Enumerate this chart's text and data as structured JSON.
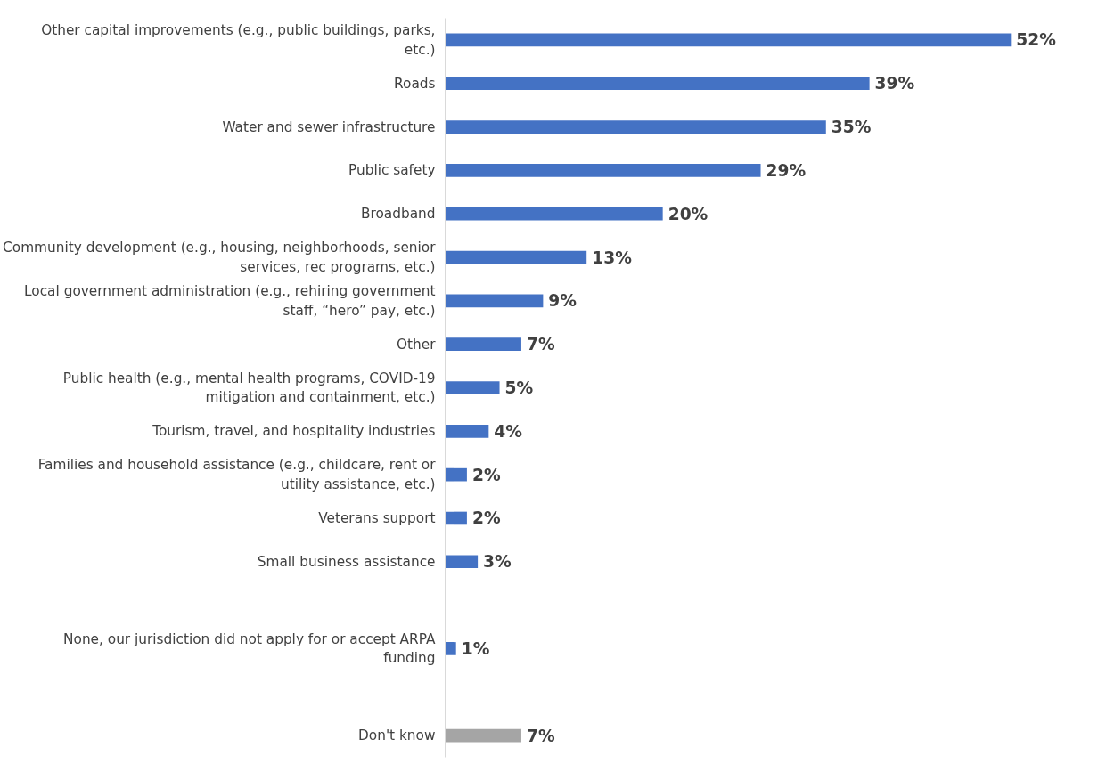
{
  "chart_data": {
    "type": "bar",
    "orientation": "horizontal",
    "categories": [
      "Other capital improvements (e.g., public buildings, parks, etc.)",
      "Roads",
      "Water and sewer infrastructure",
      "Public safety",
      "Broadband",
      "Community development (e.g., housing, neighborhoods, senior services, rec programs, etc.)",
      "Local government administration (e.g., rehiring government staff, “hero” pay, etc.)",
      "Other",
      "Public health (e.g., mental health programs, COVID-19 mitigation and containment, etc.)",
      "Tourism, travel, and hospitality industries",
      "Families and household assistance (e.g., childcare, rent or utility assistance, etc.)",
      "Veterans support",
      "Small business assistance",
      null,
      "None, our jurisdiction did not apply for or accept ARPA funding",
      null,
      "Don't know"
    ],
    "values": [
      52,
      39,
      35,
      29,
      20,
      13,
      9,
      7,
      5,
      4,
      2,
      2,
      3,
      null,
      1,
      null,
      7
    ],
    "value_labels": [
      "52%",
      "39%",
      "35%",
      "29%",
      "20%",
      "13%",
      "9%",
      "7%",
      "5%",
      "4%",
      "2%",
      "2%",
      "3%",
      null,
      "1%",
      null,
      "7%"
    ],
    "colors": [
      "#4472c4",
      "#4472c4",
      "#4472c4",
      "#4472c4",
      "#4472c4",
      "#4472c4",
      "#4472c4",
      "#4472c4",
      "#4472c4",
      "#4472c4",
      "#4472c4",
      "#4472c4",
      "#4472c4",
      "#4472c4",
      "#4472c4",
      "#4472c4",
      "#a5a5a5"
    ],
    "grid": false
  }
}
